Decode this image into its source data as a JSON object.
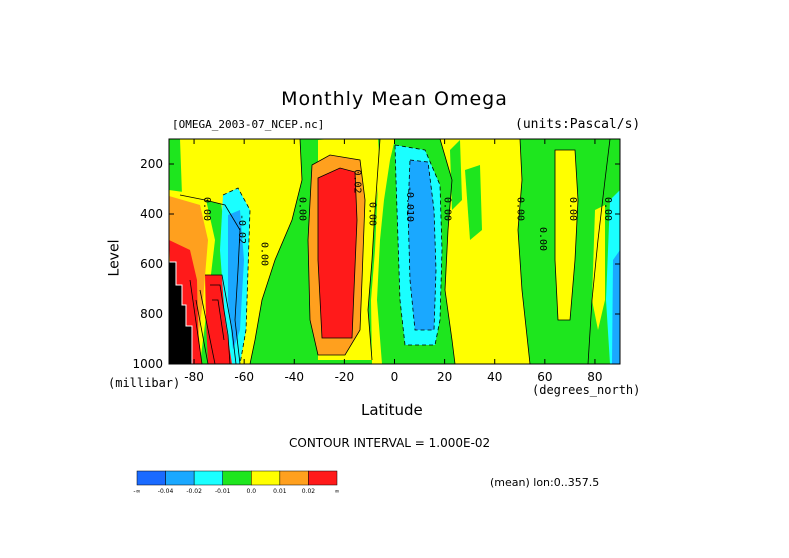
{
  "chart_data": {
    "type": "heatmap",
    "title": "Monthly Mean Omega",
    "file_label": "[OMEGA_2003-07_NCEP.nc]",
    "units_label": "(units:Pascal/s)",
    "ylabel": "Level",
    "y_unit_label": "(millibar)",
    "xlabel": "Latitude",
    "x_unit_label": "(degrees_north)",
    "xlim": [
      -90,
      90
    ],
    "ylim": [
      1000,
      100
    ],
    "x_ticks": [
      -80,
      -60,
      -40,
      -20,
      0,
      20,
      40,
      60,
      80
    ],
    "y_ticks": [
      200,
      400,
      600,
      800,
      1000
    ],
    "contour_interval_text": "CONTOUR INTERVAL = 1.000E-02",
    "mean_text": "(mean) lon:0..357.5",
    "contour_labels": [
      "0.00",
      "-0.02",
      "0.00",
      "0.00",
      "0.02",
      "0.00",
      "-0.010",
      "0.00",
      "0.00",
      "0.00",
      "0.00",
      "0.00"
    ],
    "colorbar": {
      "colors": [
        "#1a6aff",
        "#1aa8ff",
        "#1affff",
        "#1ee61e",
        "#ffff00",
        "#ffa01e",
        "#ff1a1a"
      ],
      "labels": [
        "-∞",
        "-0.04",
        "-0.02",
        "-0.01",
        "0.0",
        "0.01",
        "0.02",
        "∞"
      ]
    },
    "regions": [
      {
        "lat": [
          -88,
          -75
        ],
        "level": [
          450,
          1000
        ],
        "value": 0.03
      },
      {
        "lat": [
          -75,
          -68
        ],
        "level": [
          650,
          1000
        ],
        "value": 0.03
      },
      {
        "lat": [
          -65,
          -60
        ],
        "level": [
          300,
          950
        ],
        "value": -0.02
      },
      {
        "lat": [
          -33,
          -18
        ],
        "level": [
          230,
          850
        ],
        "value": 0.03
      },
      {
        "lat": [
          5,
          18
        ],
        "level": [
          250,
          900
        ],
        "value": -0.03
      },
      {
        "lat": [
          86,
          90
        ],
        "level": [
          250,
          1000
        ],
        "value": -0.02
      }
    ]
  }
}
